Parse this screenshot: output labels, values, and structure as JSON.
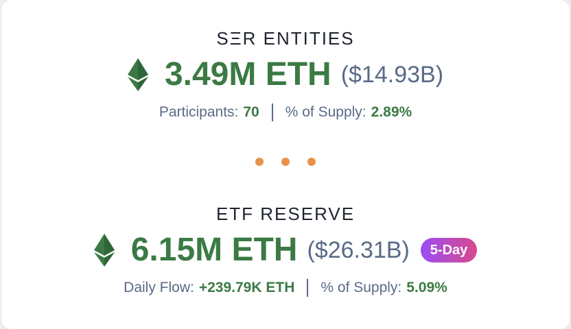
{
  "sections": [
    {
      "heading": "SΞR ENTITIES",
      "amount": "3.49M ETH",
      "usd": "($14.93B)",
      "stats": [
        {
          "label": "Participants:",
          "value": "70"
        },
        {
          "label": "% of Supply:",
          "value": "2.89%"
        }
      ]
    },
    {
      "heading": "ETF RESERVE",
      "amount": "6.15M ETH",
      "usd": "($26.31B)",
      "badge": "5-Day",
      "stats": [
        {
          "label": "Daily Flow:",
          "value": "+239.79K ETH"
        },
        {
          "label": "% of Supply:",
          "value": "5.09%"
        }
      ]
    }
  ],
  "icons": {
    "eth": "ethereum-icon"
  },
  "colors": {
    "accent_green": "#3b7a44",
    "muted_blue": "#5a6a86",
    "separator_dots": "#e8924a",
    "badge_gradient_start": "#9b4df5",
    "badge_gradient_end": "#d84a8c"
  }
}
